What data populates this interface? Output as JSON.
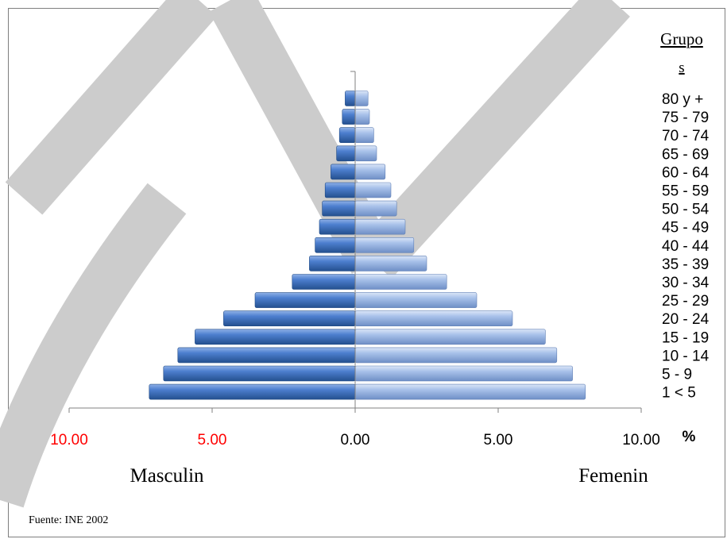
{
  "chart_data": {
    "type": "bar",
    "orientation": "horizontal",
    "legend_title_line1": "Grupo",
    "legend_title_line2": "s",
    "categories": [
      "80 y +",
      "75 - 79",
      "70 - 74",
      "65 - 69",
      "60 - 64",
      "55 - 59",
      "50 - 54",
      "45 - 49",
      "40 - 44",
      "35 - 39",
      "30 - 34",
      "25 - 29",
      "20 - 24",
      "15 - 19",
      "10 - 14",
      "5 - 9",
      "1 <  5"
    ],
    "series": [
      {
        "name": "Masculin",
        "color": "#3a6ab8",
        "values": [
          0.35,
          0.45,
          0.55,
          0.65,
          0.85,
          1.05,
          1.15,
          1.25,
          1.4,
          1.6,
          2.2,
          3.5,
          4.6,
          5.6,
          6.2,
          6.7,
          7.2
        ]
      },
      {
        "name": "Femenin",
        "color": "#9bb8e6",
        "values": [
          0.45,
          0.5,
          0.65,
          0.75,
          1.05,
          1.25,
          1.45,
          1.75,
          2.05,
          2.5,
          3.2,
          4.25,
          5.5,
          6.65,
          7.05,
          7.6,
          8.05
        ]
      }
    ],
    "xlim": [
      -10,
      10
    ],
    "tick_values": [
      -10,
      -5,
      0,
      5,
      10
    ],
    "tick_labels": [
      "10.00",
      "5.00",
      "0.00",
      "5.00",
      "10.00"
    ],
    "tick_colors": [
      "#ff0000",
      "#ff0000",
      "#000000",
      "#000000",
      "#000000"
    ],
    "xunit": "%",
    "left_label": "Masculin",
    "right_label": "Femenin",
    "source": "Fuente: INE 2002"
  },
  "watermark_color": "#cccccc"
}
